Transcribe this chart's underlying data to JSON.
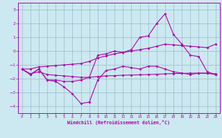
{
  "xlabel": "Windchill (Refroidissement éolien,°C)",
  "xlim": [
    -0.5,
    23.5
  ],
  "ylim": [
    -4.5,
    3.5
  ],
  "yticks": [
    -4,
    -3,
    -2,
    -1,
    0,
    1,
    2,
    3
  ],
  "xticks": [
    0,
    1,
    2,
    3,
    4,
    5,
    6,
    7,
    8,
    9,
    10,
    11,
    12,
    13,
    14,
    15,
    16,
    17,
    18,
    19,
    20,
    21,
    22,
    23
  ],
  "bg_color": "#cce8f0",
  "line_color": "#aa00aa",
  "grid_color": "#99bbcc",
  "x": [
    0,
    1,
    2,
    3,
    4,
    5,
    6,
    7,
    8,
    9,
    10,
    11,
    12,
    13,
    14,
    15,
    16,
    17,
    18,
    19,
    20,
    21,
    22,
    23
  ],
  "jagged1": [
    -1.3,
    -1.7,
    -1.3,
    -2.1,
    -2.2,
    -2.6,
    -3.1,
    -3.8,
    -3.7,
    -2.1,
    -1.4,
    -1.3,
    -1.1,
    -1.2,
    -1.3,
    -1.1,
    -1.1,
    -1.3,
    -1.5,
    -1.6,
    -1.7,
    -1.6,
    -1.6,
    -1.7
  ],
  "jagged2": [
    -1.3,
    -1.7,
    -1.3,
    -2.1,
    -2.1,
    -2.2,
    -2.2,
    -2.1,
    -1.9,
    -0.3,
    -0.2,
    0.0,
    -0.1,
    0.1,
    1.0,
    1.1,
    2.0,
    2.7,
    1.2,
    0.5,
    -0.3,
    -0.4,
    -1.5,
    -1.7
  ],
  "smooth_lower": [
    -1.3,
    -1.65,
    -1.5,
    -1.7,
    -1.75,
    -1.8,
    -1.85,
    -1.9,
    -1.9,
    -1.85,
    -1.8,
    -1.78,
    -1.75,
    -1.73,
    -1.72,
    -1.7,
    -1.68,
    -1.65,
    -1.63,
    -1.62,
    -1.6,
    -1.6,
    -1.62,
    -1.65
  ],
  "smooth_upper": [
    -1.3,
    -1.3,
    -1.15,
    -1.1,
    -1.05,
    -1.0,
    -0.95,
    -0.9,
    -0.75,
    -0.5,
    -0.35,
    -0.2,
    -0.1,
    0.0,
    0.1,
    0.2,
    0.35,
    0.5,
    0.45,
    0.4,
    0.35,
    0.3,
    0.25,
    0.5
  ]
}
